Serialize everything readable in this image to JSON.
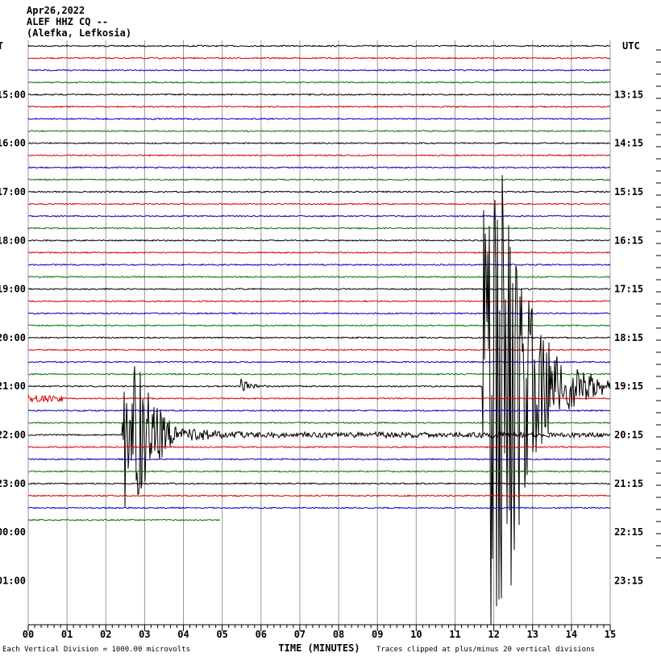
{
  "header": {
    "date": "Apr26,2022",
    "station": "ALEF HHZ CQ --",
    "location": "(Alefka, Lefkosia)"
  },
  "left_zone": "T",
  "right_zone": "UTC",
  "left_labels": [
    "15:00",
    "16:00",
    "17:00",
    "18:00",
    "19:00",
    "20:00",
    "21:00",
    "22:00",
    "23:00",
    "00:00",
    "01:00"
  ],
  "right_labels": [
    "13:15",
    "14:15",
    "15:15",
    "16:15",
    "17:15",
    "18:15",
    "19:15",
    "20:15",
    "21:15",
    "22:15",
    "23:15"
  ],
  "x_ticks": [
    "00",
    "01",
    "02",
    "03",
    "04",
    "05",
    "06",
    "07",
    "08",
    "09",
    "10",
    "11",
    "12",
    "13",
    "14",
    "15"
  ],
  "x_label": "TIME (MINUTES)",
  "footer_left": "Each Vertical Division = 1000.00 microvolts",
  "footer_right": "Traces clipped at plus/minus 20 vertical divisions"
}
